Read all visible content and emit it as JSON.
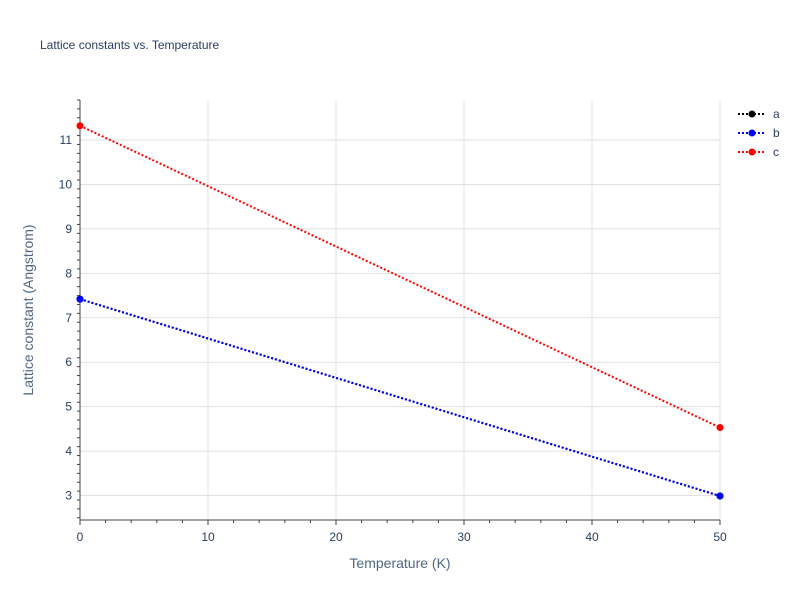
{
  "chart_data": {
    "type": "line",
    "title": "Lattice constants vs. Temperature",
    "xlabel": "Temperature (K)",
    "ylabel": "Lattice constant (Angstrom)",
    "xlim": [
      0,
      50
    ],
    "ylim": [
      2.45,
      11.9
    ],
    "x_ticks": [
      0,
      10,
      20,
      30,
      40,
      50
    ],
    "y_ticks": [
      3,
      4,
      5,
      6,
      7,
      8,
      9,
      10,
      11
    ],
    "grid": true,
    "legend_position": "top-right",
    "series": [
      {
        "name": "a",
        "color": "#000000",
        "x": [
          0,
          50
        ],
        "values": [
          7.42,
          2.99
        ]
      },
      {
        "name": "b",
        "color": "#0000ff",
        "x": [
          0,
          50
        ],
        "values": [
          7.42,
          2.99
        ]
      },
      {
        "name": "c",
        "color": "#ff0000",
        "x": [
          0,
          50
        ],
        "values": [
          11.32,
          4.53
        ]
      }
    ]
  }
}
